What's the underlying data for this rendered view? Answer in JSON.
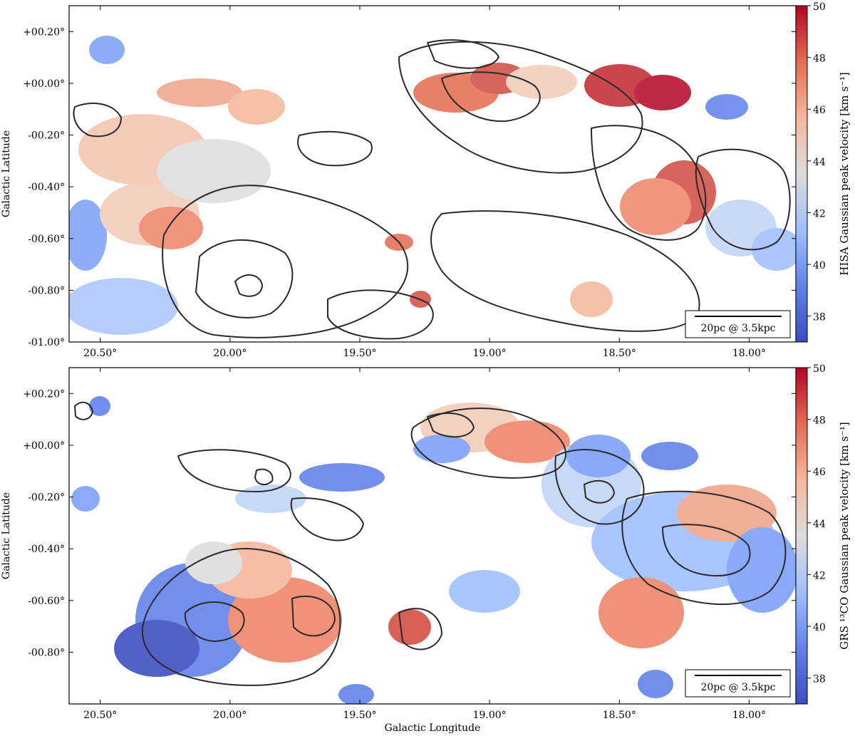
{
  "chart_data": [
    {
      "type": "heatmap",
      "panel": "top",
      "xlabel": "",
      "ylabel": "Galactic Latitude",
      "colorbar_label": "HISA Gaussian peak velocity [km s⁻¹]",
      "xlim": [
        20.62,
        17.82
      ],
      "ylim": [
        -1.0,
        0.3
      ],
      "x_ticks": [
        20.5,
        20.0,
        19.5,
        19.0,
        18.5,
        18.0
      ],
      "x_tick_labels": [
        "20.50°",
        "20.00°",
        "19.50°",
        "19.00°",
        "18.50°",
        "18.00°"
      ],
      "y_ticks": [
        0.2,
        0.0,
        -0.2,
        -0.4,
        -0.6,
        -0.8,
        -1.0
      ],
      "y_tick_labels": [
        "+00.20°",
        "+00.00°",
        "-00.20°",
        "-00.40°",
        "-00.60°",
        "-00.80°",
        "-01.00°"
      ],
      "colorbar_range": [
        37,
        50
      ],
      "colorbar_ticks": [
        "38",
        "40",
        "42",
        "44",
        "46",
        "48",
        "50"
      ],
      "colormap": [
        "#3b4cc0",
        "#7b9ff9",
        "#c0d4f5",
        "#dddcdc",
        "#f2cbb7",
        "#ee8468",
        "#b40426"
      ],
      "scalebar_text": "20pc @ 3.5kpc",
      "scalebar_position": "bottom-right",
      "contour_color": "#2a2a2a"
    },
    {
      "type": "heatmap",
      "panel": "bottom",
      "xlabel": "Galactic Longitude",
      "ylabel": "Galactic Latitude",
      "colorbar_label": "GRS ¹³CO Gaussian peak velocity [km s⁻¹]",
      "xlim": [
        20.62,
        17.82
      ],
      "ylim": [
        -1.0,
        0.3
      ],
      "x_ticks": [
        20.5,
        20.0,
        19.5,
        19.0,
        18.5,
        18.0
      ],
      "x_tick_labels": [
        "20.50°",
        "20.00°",
        "19.50°",
        "19.00°",
        "18.50°",
        "18.00°"
      ],
      "y_ticks": [
        0.2,
        0.0,
        -0.2,
        -0.4,
        -0.6,
        -0.8
      ],
      "y_tick_labels": [
        "+00.20°",
        "+00.00°",
        "-00.20°",
        "-00.40°",
        "-00.60°",
        "-00.80°"
      ],
      "colorbar_range": [
        37,
        50
      ],
      "colorbar_ticks": [
        "38",
        "40",
        "42",
        "44",
        "46",
        "48",
        "50"
      ],
      "colormap": [
        "#3b4cc0",
        "#7b9ff9",
        "#c0d4f5",
        "#dddcdc",
        "#f2cbb7",
        "#ee8468",
        "#b40426"
      ],
      "scalebar_text": "20pc @ 3.5kpc",
      "scalebar_position": "bottom-right",
      "contour_color": "#2a2a2a"
    }
  ]
}
